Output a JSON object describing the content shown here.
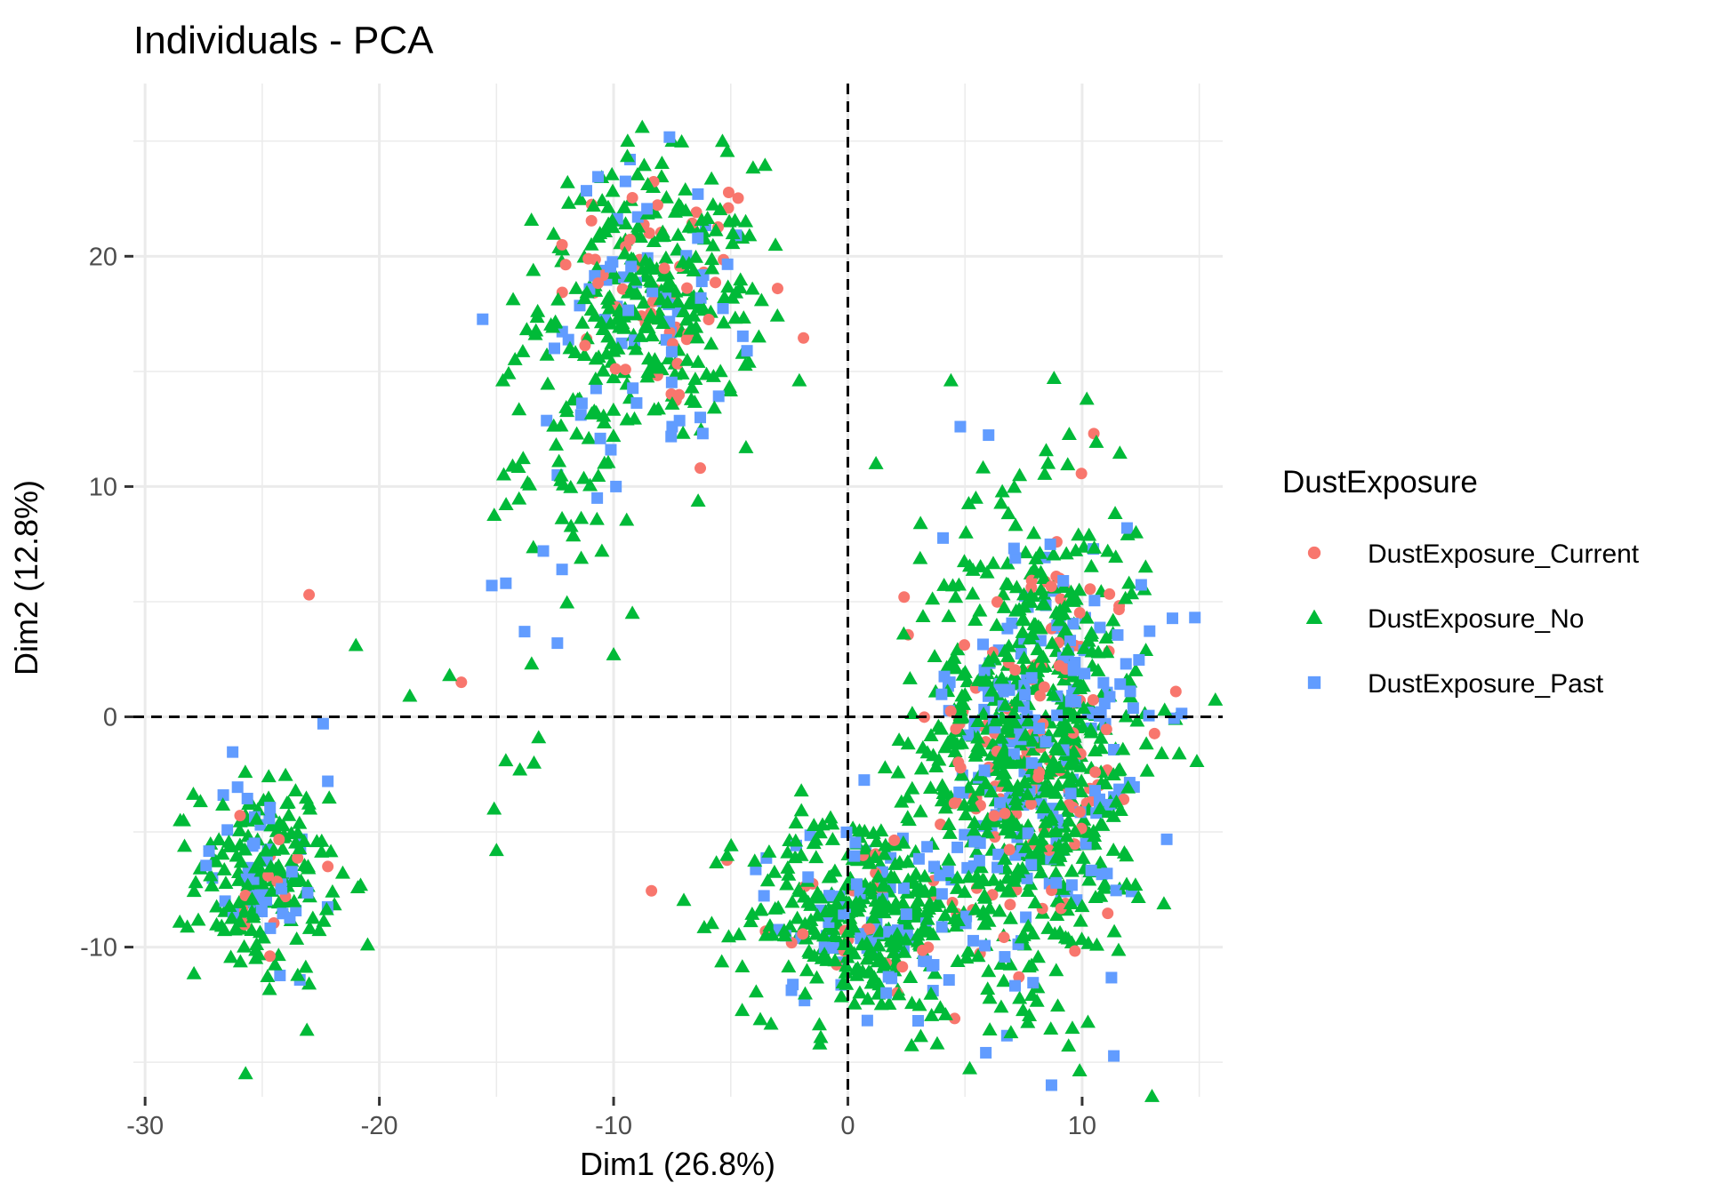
{
  "chart_data": {
    "type": "scatter",
    "title": "Individuals - PCA",
    "xlabel": "Dim1 (26.8%)",
    "ylabel": "Dim2 (12.8%)",
    "xlim": [
      -30.5,
      16
    ],
    "ylim": [
      -16.5,
      27.5
    ],
    "xticks": [
      -30,
      -20,
      -10,
      0,
      10
    ],
    "xtick_labels": [
      "-30",
      "-20",
      "-10",
      "0",
      "10"
    ],
    "yticks": [
      -10,
      0,
      10,
      20
    ],
    "ytick_labels": [
      "-10",
      "0",
      "10",
      "20"
    ],
    "grid": true,
    "reference_lines": {
      "x": 0,
      "y": 0,
      "style": "dashed"
    },
    "legend": {
      "title": "DustExposure",
      "position": "right",
      "entries": [
        "DustExposure_Current",
        "DustExposure_No",
        "DustExposure_Past"
      ]
    },
    "series": [
      {
        "name": "DustExposure_Current",
        "color": "#F8766D",
        "marker": "circle",
        "clusters": [
          {
            "cx": -8,
            "cy": 18.5,
            "sx": 2.2,
            "sy": 2.8,
            "n": 55
          },
          {
            "cx": -25,
            "cy": -7,
            "sx": 1.2,
            "sy": 2.0,
            "n": 14
          },
          {
            "cx": 0.5,
            "cy": -8.5,
            "sx": 2.2,
            "sy": 2.0,
            "n": 30
          },
          {
            "cx": 8,
            "cy": -1.5,
            "sx": 2.2,
            "sy": 5.0,
            "n": 130
          }
        ],
        "points": [
          [
            -23,
            5.3
          ],
          [
            -16.5,
            1.5
          ],
          [
            -6.3,
            10.8
          ],
          [
            -3,
            18.6
          ],
          [
            7.3,
            -11.3
          ],
          [
            14,
            1.1
          ],
          [
            10.5,
            12.3
          ],
          [
            2.4,
            5.2
          ],
          [
            -12.2,
            20.5
          ],
          [
            -22.2,
            -6.5
          ]
        ]
      },
      {
        "name": "DustExposure_No",
        "color": "#00BA38",
        "marker": "triangle",
        "clusters": [
          {
            "cx": -8.5,
            "cy": 18,
            "sx": 2.3,
            "sy": 3.0,
            "n": 280
          },
          {
            "cx": -12,
            "cy": 11,
            "sx": 1.5,
            "sy": 2.2,
            "n": 40
          },
          {
            "cx": -25,
            "cy": -7,
            "sx": 1.4,
            "sy": 2.2,
            "n": 160
          },
          {
            "cx": 0.5,
            "cy": -8.5,
            "sx": 2.4,
            "sy": 2.2,
            "n": 300
          },
          {
            "cx": 8,
            "cy": -1.5,
            "sx": 2.4,
            "sy": 5.2,
            "n": 650
          }
        ],
        "points": [
          [
            -9.4,
            25
          ],
          [
            -7.5,
            25
          ],
          [
            -20.5,
            -9.9
          ],
          [
            -21,
            3.1
          ],
          [
            -18.7,
            0.9
          ],
          [
            -17,
            1.8
          ],
          [
            -15.1,
            -4
          ],
          [
            -15,
            -5.8
          ],
          [
            -14.6,
            -1.9
          ],
          [
            -14,
            -2.3
          ],
          [
            -13.4,
            -2
          ],
          [
            -13.2,
            -0.9
          ],
          [
            -13.5,
            2.3
          ],
          [
            -10,
            2.7
          ],
          [
            -9.2,
            4.5
          ],
          [
            -10.5,
            7.2
          ],
          [
            -1.2,
            -14.2
          ],
          [
            1.2,
            11
          ],
          [
            3.1,
            8.4
          ],
          [
            4.4,
            14.6
          ],
          [
            8.8,
            14.7
          ],
          [
            10.2,
            13.8
          ],
          [
            12.3,
            8
          ],
          [
            -28.5,
            -4.5
          ],
          [
            -23,
            -11.6
          ],
          [
            -22,
            -7.6
          ],
          [
            -4.2,
            20.9
          ],
          [
            -3.8,
            16.5
          ]
        ]
      },
      {
        "name": "DustExposure_Past",
        "color": "#619CFF",
        "marker": "square",
        "clusters": [
          {
            "cx": -9,
            "cy": 18,
            "sx": 2.2,
            "sy": 3.0,
            "n": 60
          },
          {
            "cx": -25,
            "cy": -6.5,
            "sx": 1.1,
            "sy": 2.0,
            "n": 45
          },
          {
            "cx": 0.5,
            "cy": -8.5,
            "sx": 2.2,
            "sy": 2.0,
            "n": 70
          },
          {
            "cx": 8.5,
            "cy": -1.5,
            "sx": 2.2,
            "sy": 5.0,
            "n": 200
          }
        ],
        "points": [
          [
            4.8,
            12.6
          ],
          [
            -13.8,
            3.7
          ],
          [
            -12.4,
            3.2
          ],
          [
            -15.2,
            5.7
          ],
          [
            -12.2,
            6.4
          ],
          [
            -13,
            7.2
          ],
          [
            -14.6,
            5.8
          ],
          [
            -9.3,
            24.2
          ],
          [
            -6.4,
            22.7
          ],
          [
            -22.2,
            -2.8
          ],
          [
            -22.4,
            -0.3
          ],
          [
            -6.3,
            13
          ],
          [
            -7.5,
            12.6
          ],
          [
            -9.9,
            10
          ],
          [
            3,
            -13.2
          ],
          [
            -10.7,
            9.5
          ],
          [
            -12.4,
            10.5
          ]
        ]
      }
    ]
  }
}
